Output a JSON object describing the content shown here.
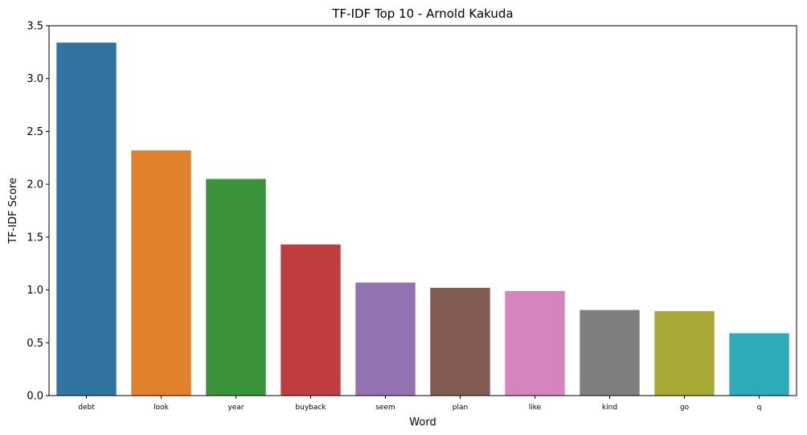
{
  "chart_data": {
    "type": "bar",
    "title": "TF-IDF Top 10 - Arnold Kakuda",
    "xlabel": "Word",
    "ylabel": "TF-IDF Score",
    "ylim": [
      0,
      3.5
    ],
    "yticks": [
      "0.0",
      "0.5",
      "1.0",
      "1.5",
      "2.0",
      "2.5",
      "3.0",
      "3.5"
    ],
    "grid": false,
    "legend": "none",
    "categories": [
      "debt",
      "look",
      "year",
      "buyback",
      "seem",
      "plan",
      "like",
      "kind",
      "go",
      "q"
    ],
    "values": [
      3.34,
      2.32,
      2.05,
      1.43,
      1.07,
      1.02,
      0.99,
      0.81,
      0.8,
      0.59
    ],
    "colors": [
      "#3274a1",
      "#e1812c",
      "#3a923a",
      "#c03d3e",
      "#9372b2",
      "#845b53",
      "#d684bd",
      "#7f7f7f",
      "#a9aa35",
      "#2eabb8"
    ]
  }
}
